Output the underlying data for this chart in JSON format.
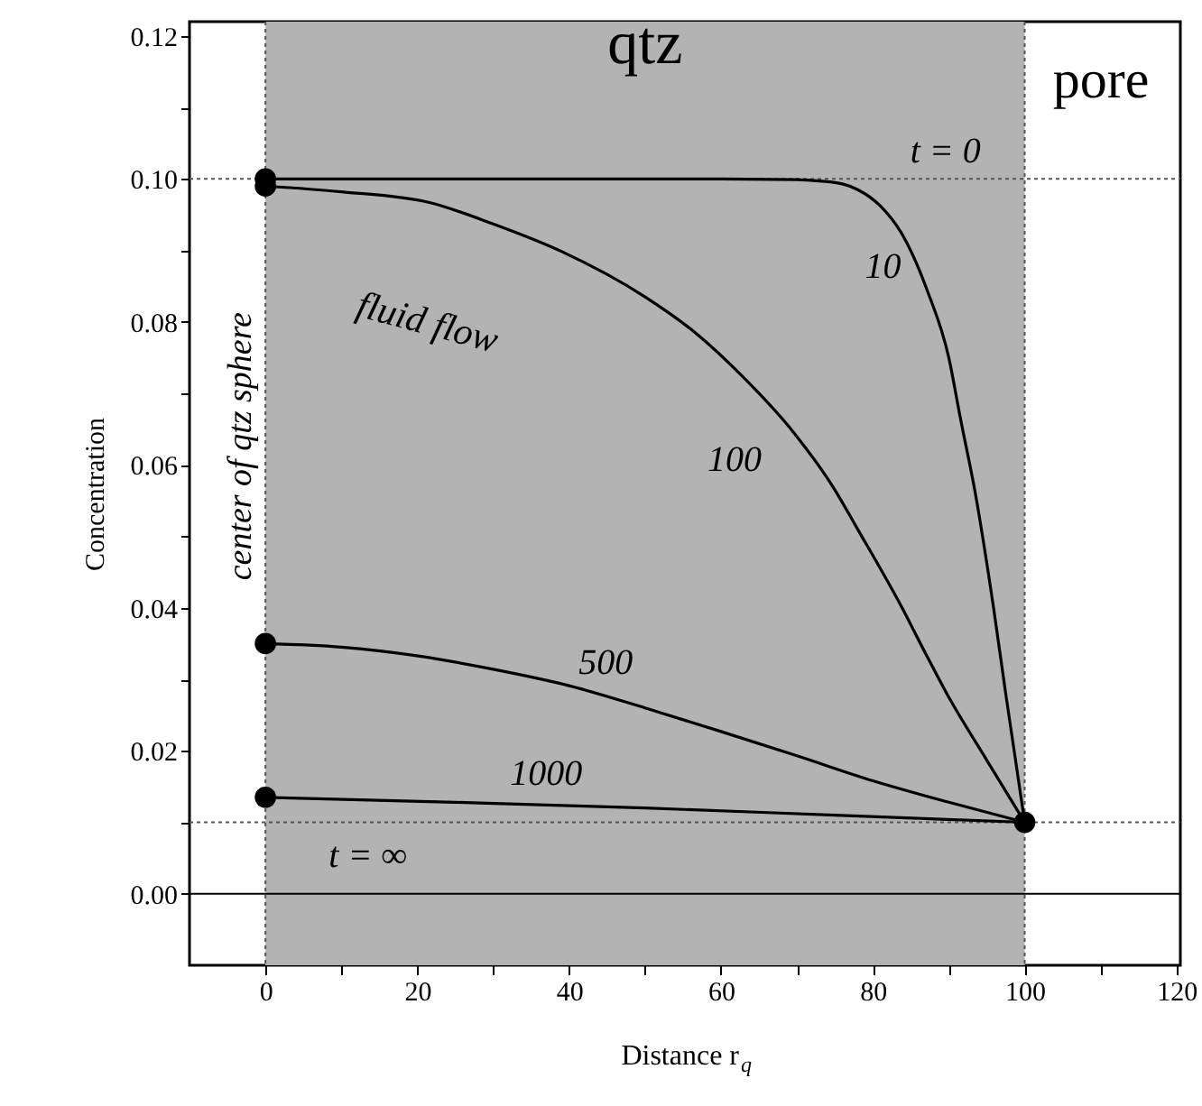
{
  "chart_data": {
    "type": "line",
    "xlabel": "Distance r$_{q}$",
    "ylabel": "Concentration",
    "xlim": [
      -10,
      120.5
    ],
    "ylim": [
      -0.01,
      0.122
    ],
    "xticks": [
      0,
      {
        "value": 10,
        "label": null
      },
      20,
      {
        "value": 30,
        "label": null
      },
      40,
      {
        "value": 50,
        "label": null
      },
      60,
      {
        "value": 70,
        "label": null
      },
      80,
      {
        "value": 90,
        "label": null
      },
      100,
      {
        "value": 110,
        "label": null
      },
      120
    ],
    "yticks": [
      {
        "value": 0,
        "label": "0.00"
      },
      {
        "value": 0.01,
        "label": null
      },
      {
        "value": 0.02,
        "label": "0.02"
      },
      {
        "value": 0.03,
        "label": null
      },
      {
        "value": 0.04,
        "label": "0.04"
      },
      {
        "value": 0.05,
        "label": null
      },
      {
        "value": 0.06,
        "label": "0.06"
      },
      {
        "value": 0.07,
        "label": null
      },
      {
        "value": 0.08,
        "label": "0.08"
      },
      {
        "value": 0.09,
        "label": null
      },
      {
        "value": 0.1,
        "label": "0.10"
      },
      {
        "value": 0.11,
        "label": null
      },
      {
        "value": 0.12,
        "label": "0.12"
      }
    ],
    "grid": false,
    "marker": "none",
    "line_style": "solid",
    "bands": [
      {
        "axis": "x",
        "from": 0,
        "to": 100,
        "label": "qtz",
        "color": "#b3b3b3"
      }
    ],
    "ref_lines": [
      {
        "axis": "x",
        "value": 0,
        "label": "center of qtz sphere",
        "line_style": "dotted",
        "color": "#555555"
      },
      {
        "axis": "x",
        "value": 100,
        "line_style": "dotted",
        "color": "#555555"
      },
      {
        "axis": "y",
        "value": 0.1,
        "label": "t = 0",
        "line_style": "dotted",
        "color": "#555555"
      },
      {
        "axis": "y",
        "value": 0.01,
        "label": "t = ∞",
        "line_style": "dotted",
        "color": "#555555"
      },
      {
        "axis": "y",
        "value": 0,
        "line_style": "solid",
        "color": "#000000"
      }
    ],
    "annotations": [
      "pore",
      "fluid flow"
    ],
    "series": [
      {
        "name": "10",
        "color": "#000000",
        "x": [
          0,
          20,
          40,
          60,
          70,
          73,
          76,
          78,
          81,
          84,
          87.2,
          90,
          91.5,
          93.5,
          95.9,
          97.5,
          100
        ],
        "values": [
          0.1,
          0.1,
          0.1,
          0.1,
          0.0999,
          0.0997,
          0.0993,
          0.0985,
          0.0962,
          0.092,
          0.0843,
          0.075,
          0.0667,
          0.056,
          0.04,
          0.028,
          0.01
        ]
      },
      {
        "name": "100",
        "color": "#000000",
        "x": [
          0,
          10,
          21.6,
          30,
          39.1,
          50,
          56.6,
          63,
          69.6,
          75,
          78,
          83.6,
          87,
          90,
          95,
          100
        ],
        "values": [
          0.099,
          0.0982,
          0.0967,
          0.0937,
          0.0898,
          0.0835,
          0.0785,
          0.0722,
          0.0645,
          0.0565,
          0.051,
          0.0405,
          0.0335,
          0.0275,
          0.0187,
          0.01
        ]
      },
      {
        "name": "500",
        "color": "#000000",
        "x": [
          0,
          10,
          19.9,
          30,
          40,
          50,
          60,
          70,
          80,
          90,
          100
        ],
        "values": [
          0.035,
          0.0345,
          0.0333,
          0.0314,
          0.0291,
          0.026,
          0.0227,
          0.0193,
          0.0158,
          0.0128,
          0.01
        ]
      },
      {
        "name": "1000",
        "color": "#000000",
        "x": [
          0,
          25,
          50,
          75,
          100
        ],
        "values": [
          0.0135,
          0.0128,
          0.012,
          0.011,
          0.01
        ]
      },
      {
        "type": "scatter",
        "marker": "circle",
        "color": "#000000",
        "x": [
          0,
          0,
          0,
          0,
          100
        ],
        "values": [
          0.1,
          0.099,
          0.035,
          0.0135,
          0.01
        ]
      }
    ]
  }
}
